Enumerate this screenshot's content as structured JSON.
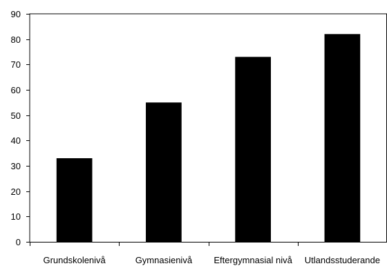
{
  "chart_data": {
    "type": "bar",
    "categories": [
      "Grundskolenivå",
      "Gymnasienivå",
      "Eftergymnasial nivå",
      "Utlandsstuderande"
    ],
    "values": [
      33,
      55,
      73,
      82
    ],
    "title": "",
    "xlabel": "",
    "ylabel": "",
    "ylim": [
      0,
      90
    ],
    "yticks": [
      0,
      10,
      20,
      30,
      40,
      50,
      60,
      70,
      80,
      90
    ],
    "grid": false,
    "legend": "none",
    "bar_color": "#000000",
    "axis_color": "#000000"
  }
}
